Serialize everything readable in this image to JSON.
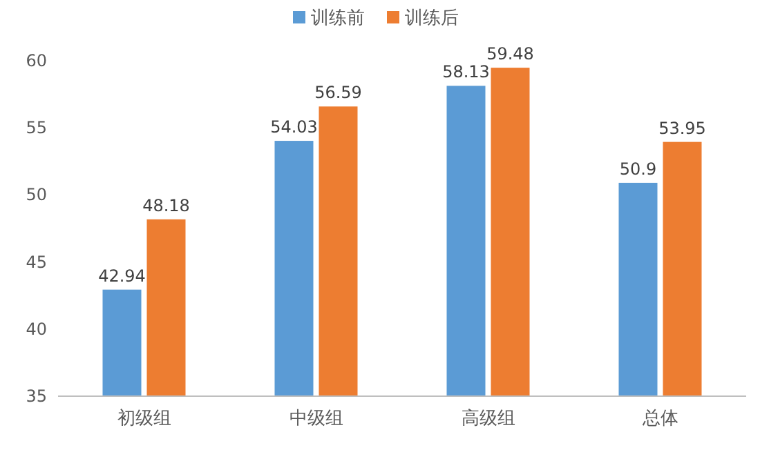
{
  "chart_data": {
    "type": "bar",
    "categories": [
      "初级组",
      "中级组",
      "高级组",
      "总体"
    ],
    "series": [
      {
        "name": "训练前",
        "color": "#5b9bd5",
        "values": [
          42.94,
          54.03,
          58.13,
          50.9
        ]
      },
      {
        "name": "训练后",
        "color": "#ed7d31",
        "values": [
          48.18,
          56.59,
          59.48,
          53.95
        ]
      }
    ],
    "ylim": [
      35,
      60
    ],
    "yticks": [
      35,
      40,
      45,
      50,
      55,
      60
    ],
    "grid": false,
    "legend": "top",
    "data_labels": true
  }
}
